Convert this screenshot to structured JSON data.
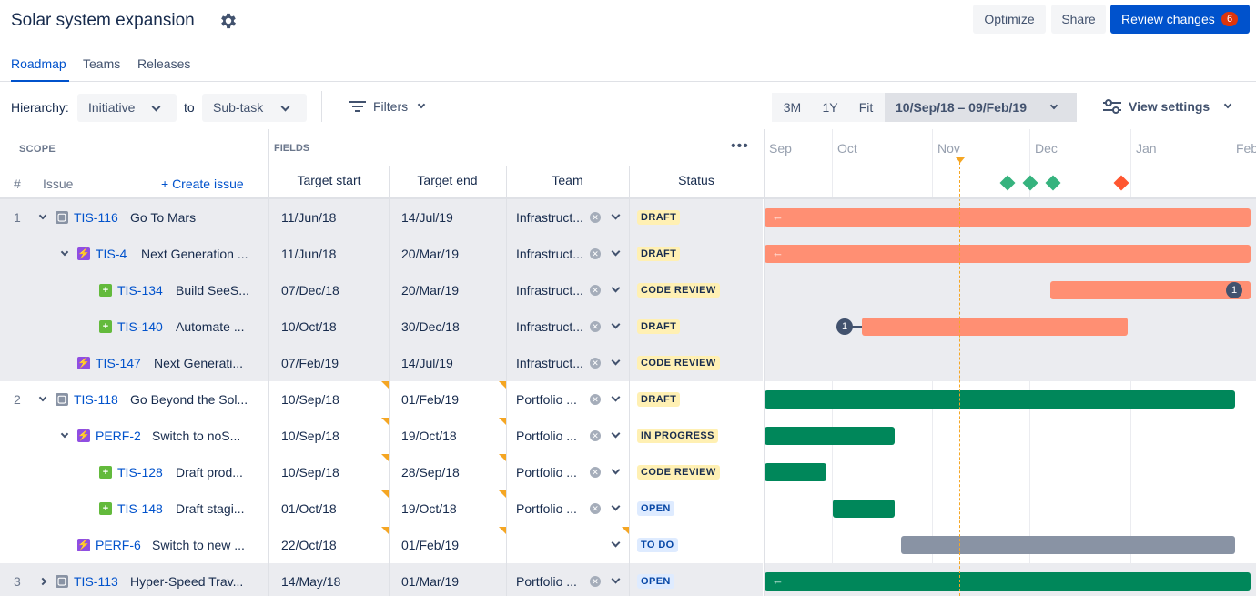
{
  "header": {
    "title": "Solar system expansion",
    "optimize_label": "Optimize",
    "share_label": "Share",
    "review_label": "Review changes",
    "review_count": "6"
  },
  "tabs": [
    "Roadmap",
    "Teams",
    "Releases"
  ],
  "toolbar": {
    "hierarchy_label": "Hierarchy:",
    "from_value": "Initiative",
    "to_label": "to",
    "to_value": "Sub-task",
    "filters_label": "Filters",
    "zoom": [
      "3M",
      "1Y",
      "Fit"
    ],
    "range": "10/Sep/18 – 09/Feb/19",
    "view_settings": "View settings"
  },
  "grid": {
    "scope_label": "SCOPE",
    "fields_label": "FIELDS",
    "more": "•••",
    "hash": "#",
    "issue_label": "Issue",
    "create_label": "+ Create issue",
    "columns": [
      "Target start",
      "Target end",
      "Team",
      "Status"
    ]
  },
  "timeline": {
    "months": [
      "Sep",
      "Oct",
      "Nov",
      "Dec",
      "Jan",
      "Feb"
    ]
  },
  "rows": [
    {
      "num": "1",
      "key": "TIS-116",
      "summary": "Go To Mars",
      "start": "11/Jun/18",
      "end": "14/Jul/19",
      "team": "Infrastruct...",
      "status": "DRAFT"
    },
    {
      "num": "",
      "key": "TIS-4",
      "summary": "Next Generation ...",
      "start": "11/Jun/18",
      "end": "20/Mar/19",
      "team": "Infrastruct...",
      "status": "DRAFT"
    },
    {
      "num": "",
      "key": "TIS-134",
      "summary": "Build SeeS...",
      "start": "07/Dec/18",
      "end": "20/Mar/19",
      "team": "Infrastruct...",
      "status": "CODE REVIEW",
      "dep": "1"
    },
    {
      "num": "",
      "key": "TIS-140",
      "summary": "Automate ...",
      "start": "10/Oct/18",
      "end": "30/Dec/18",
      "team": "Infrastruct...",
      "status": "DRAFT",
      "dep": "1"
    },
    {
      "num": "",
      "key": "TIS-147",
      "summary": "Next Generati...",
      "start": "07/Feb/19",
      "end": "14/Jul/19",
      "team": "Infrastruct...",
      "status": "CODE REVIEW"
    },
    {
      "num": "2",
      "key": "TIS-118",
      "summary": "Go Beyond the Sol...",
      "start": "10/Sep/18",
      "end": "01/Feb/19",
      "team": "Portfolio ...",
      "status": "DRAFT"
    },
    {
      "num": "",
      "key": "PERF-2",
      "summary": "Switch to noS...",
      "start": "10/Sep/18",
      "end": "19/Oct/18",
      "team": "Portfolio ...",
      "status": "IN PROGRESS"
    },
    {
      "num": "",
      "key": "TIS-128",
      "summary": "Draft prod...",
      "start": "10/Sep/18",
      "end": "28/Sep/18",
      "team": "Portfolio ...",
      "status": "CODE REVIEW"
    },
    {
      "num": "",
      "key": "TIS-148",
      "summary": "Draft stagi...",
      "start": "01/Oct/18",
      "end": "19/Oct/18",
      "team": "Portfolio ...",
      "status": "OPEN"
    },
    {
      "num": "",
      "key": "PERF-6",
      "summary": "Switch to new ...",
      "start": "22/Oct/18",
      "end": "01/Feb/19",
      "team": "",
      "status": "TO DO"
    },
    {
      "num": "3",
      "key": "TIS-113",
      "summary": "Hyper-Speed Trav...",
      "start": "14/May/18",
      "end": "01/Mar/19",
      "team": "Portfolio ...",
      "status": "OPEN"
    }
  ],
  "colors": {
    "primary": "#0052cc",
    "draft_bar": "#ff8f73",
    "green_bar": "#00875a",
    "grey_bar": "#8993a4",
    "today": "#f5a623"
  }
}
